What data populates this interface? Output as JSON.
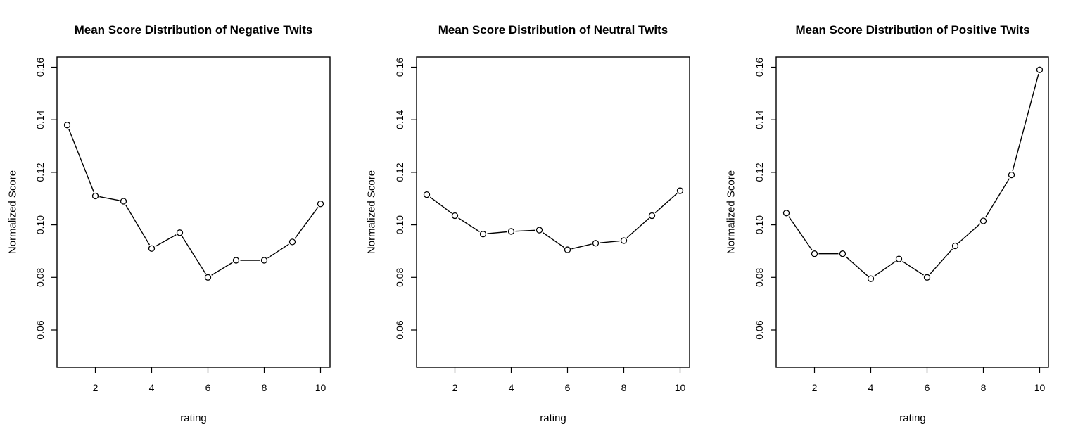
{
  "chart_data": [
    {
      "type": "line",
      "title": "Mean Score Distribution of Negative Twits",
      "xlabel": "rating",
      "ylabel": "Normalized Score",
      "xlim": [
        1,
        10
      ],
      "ylim": [
        0.05,
        0.16
      ],
      "x_ticks": [
        2,
        4,
        6,
        8,
        10
      ],
      "y_ticks": [
        "0.06",
        "0.08",
        "0.10",
        "0.12",
        "0.14",
        "0.16"
      ],
      "x": [
        1,
        2,
        3,
        4,
        5,
        6,
        7,
        8,
        9,
        10
      ],
      "values": [
        0.138,
        0.111,
        0.109,
        0.091,
        0.097,
        0.08,
        0.0865,
        0.0865,
        0.0935,
        0.108
      ]
    },
    {
      "type": "line",
      "title": "Mean Score Distribution of Neutral Twits",
      "xlabel": "rating",
      "ylabel": "Normalized Score",
      "xlim": [
        1,
        10
      ],
      "ylim": [
        0.05,
        0.16
      ],
      "x_ticks": [
        2,
        4,
        6,
        8,
        10
      ],
      "y_ticks": [
        "0.06",
        "0.08",
        "0.10",
        "0.12",
        "0.14",
        "0.16"
      ],
      "x": [
        1,
        2,
        3,
        4,
        5,
        6,
        7,
        8,
        9,
        10
      ],
      "values": [
        0.1115,
        0.1035,
        0.0965,
        0.0975,
        0.098,
        0.0905,
        0.093,
        0.094,
        0.1035,
        0.113
      ]
    },
    {
      "type": "line",
      "title": "Mean Score Distribution of Positive Twits",
      "xlabel": "rating",
      "ylabel": "Normalized Score",
      "xlim": [
        1,
        10
      ],
      "ylim": [
        0.05,
        0.16
      ],
      "x_ticks": [
        2,
        4,
        6,
        8,
        10
      ],
      "y_ticks": [
        "0.06",
        "0.08",
        "0.10",
        "0.12",
        "0.14",
        "0.16"
      ],
      "x": [
        1,
        2,
        3,
        4,
        5,
        6,
        7,
        8,
        9,
        10
      ],
      "values": [
        0.1045,
        0.089,
        0.089,
        0.0795,
        0.087,
        0.08,
        0.092,
        0.1015,
        0.119,
        0.159
      ]
    }
  ]
}
